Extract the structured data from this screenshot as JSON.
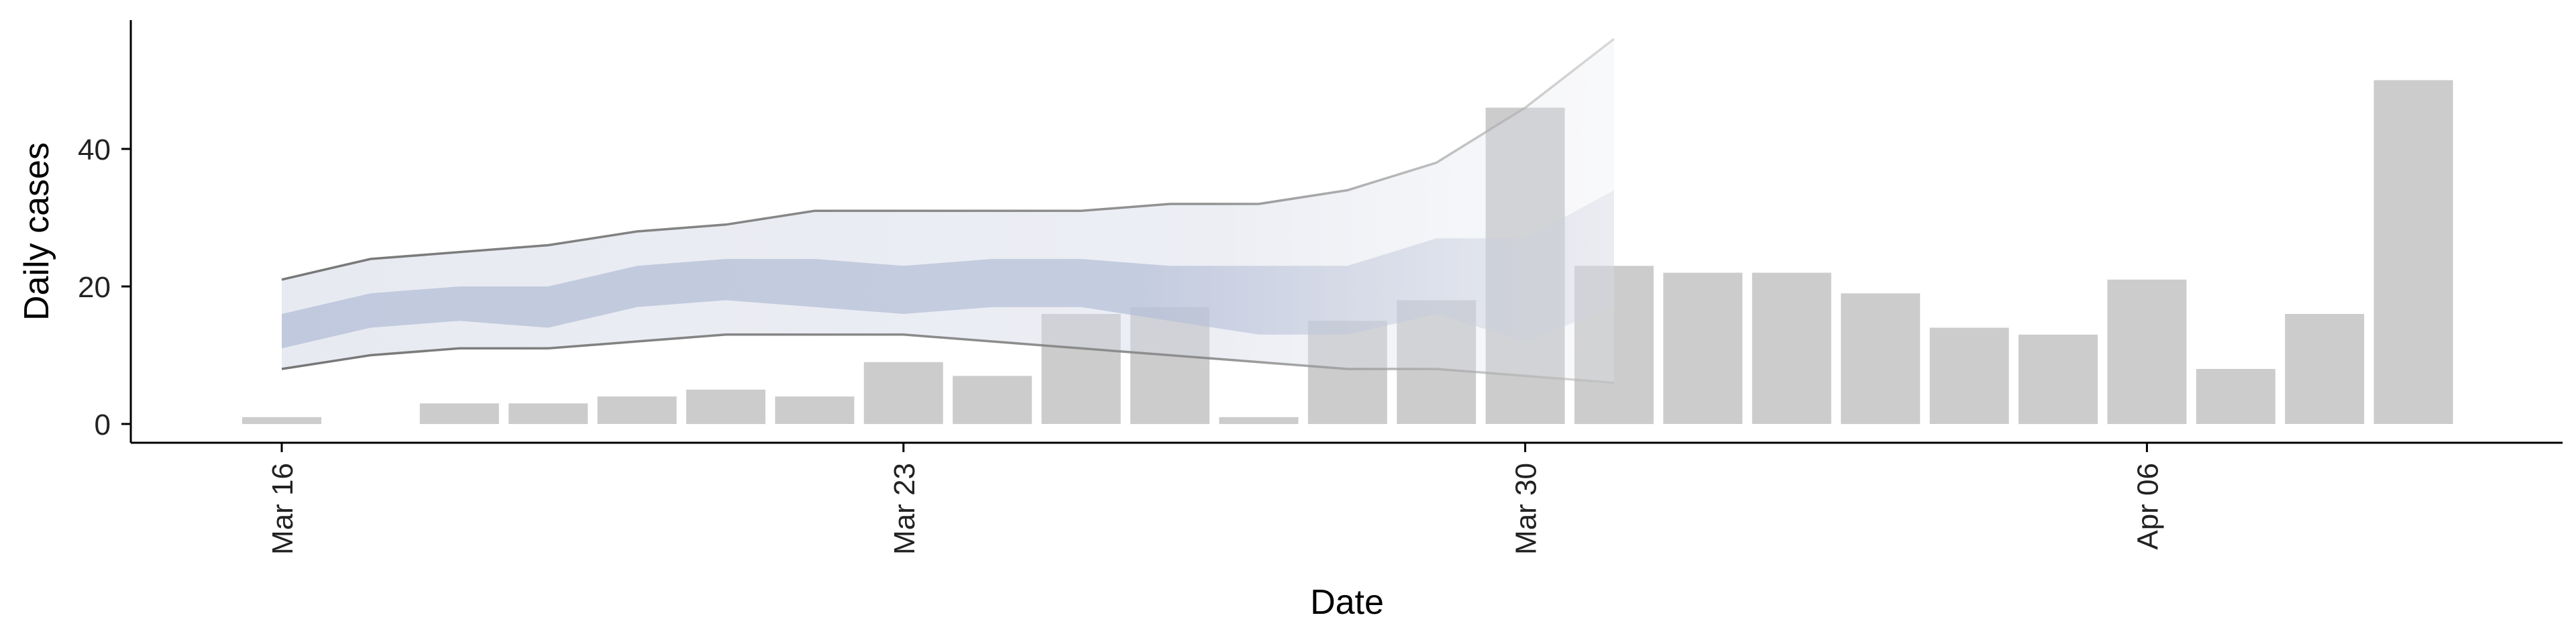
{
  "chart_data": {
    "type": "bar",
    "xlabel": "Date",
    "ylabel": "Daily cases",
    "x_ticks": [
      "Mar 16",
      "Mar 23",
      "Mar 30",
      "Apr 06"
    ],
    "y_ticks": [
      0,
      20,
      40
    ],
    "xlim": [
      "2020-03-14",
      "2020-04-13"
    ],
    "ylim": [
      -2.5,
      59
    ],
    "grid": false,
    "legend": "none",
    "series": [
      {
        "type": "bar",
        "color": "#cccccc",
        "x": [
          "2020-03-16",
          "2020-03-17",
          "2020-03-18",
          "2020-03-19",
          "2020-03-20",
          "2020-03-21",
          "2020-03-22",
          "2020-03-23",
          "2020-03-24",
          "2020-03-25",
          "2020-03-26",
          "2020-03-27",
          "2020-03-28",
          "2020-03-29",
          "2020-03-30",
          "2020-03-31",
          "2020-04-01",
          "2020-04-02",
          "2020-04-03",
          "2020-04-04",
          "2020-04-05",
          "2020-04-06",
          "2020-04-07",
          "2020-04-08",
          "2020-04-09",
          "2020-04-10"
        ],
        "values": [
          1,
          0,
          3,
          3,
          4,
          5,
          4,
          9,
          7,
          16,
          17,
          1,
          15,
          18,
          46,
          23,
          22,
          22,
          19,
          14,
          13,
          21,
          8,
          16,
          50,
          0
        ]
      },
      {
        "type": "band",
        "color": "#b4bed7",
        "x": [
          "2020-03-16",
          "2020-03-17",
          "2020-03-18",
          "2020-03-19",
          "2020-03-20",
          "2020-03-21",
          "2020-03-22",
          "2020-03-23",
          "2020-03-24",
          "2020-03-25",
          "2020-03-26",
          "2020-03-27",
          "2020-03-28",
          "2020-03-29",
          "2020-03-30",
          "2020-03-31"
        ],
        "low": [
          11,
          14,
          15,
          14,
          17,
          18,
          17,
          16,
          17,
          17,
          15,
          13,
          13,
          16,
          12,
          17
        ],
        "high": [
          16,
          19,
          20,
          20,
          23,
          24,
          24,
          23,
          24,
          24,
          23,
          23,
          23,
          27,
          27,
          34
        ]
      },
      {
        "type": "band-outer",
        "color": "#d4d9e6",
        "x": [
          "2020-03-16",
          "2020-03-17",
          "2020-03-18",
          "2020-03-19",
          "2020-03-20",
          "2020-03-21",
          "2020-03-22",
          "2020-03-23",
          "2020-03-24",
          "2020-03-25",
          "2020-03-26",
          "2020-03-27",
          "2020-03-28",
          "2020-03-29",
          "2020-03-30",
          "2020-03-31"
        ],
        "low": [
          8,
          10,
          11,
          11,
          12,
          13,
          13,
          13,
          12,
          11,
          10,
          9,
          8,
          8,
          7,
          6
        ],
        "high": [
          21,
          24,
          25,
          26,
          28,
          29,
          31,
          31,
          31,
          31,
          32,
          32,
          34,
          38,
          46,
          56
        ]
      }
    ]
  }
}
